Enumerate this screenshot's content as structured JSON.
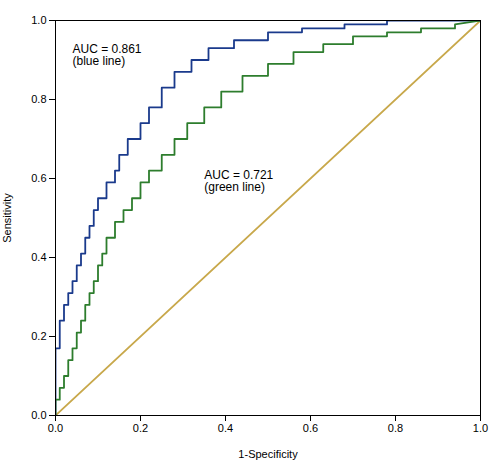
{
  "chart_data": {
    "type": "line",
    "xlabel": "1-Specificity",
    "ylabel": "Sensitivity",
    "xlim": [
      0.0,
      1.0
    ],
    "ylim": [
      0.0,
      1.0
    ],
    "xticks": [
      {
        "value": 0.0,
        "label": "0.0"
      },
      0.2,
      0.4,
      0.6,
      0.8,
      {
        "value": 1.0,
        "label": "1.0"
      }
    ],
    "yticks": [
      {
        "value": 0.0,
        "label": "0.0"
      },
      0.2,
      0.4,
      0.6,
      0.8,
      {
        "value": 1.0,
        "label": "1.0"
      }
    ],
    "grid": false,
    "series": [
      {
        "color": "#c8a84b",
        "x": [
          0,
          1
        ],
        "values": [
          0,
          1
        ]
      },
      {
        "color": "#1a3a8c",
        "x": [
          0.0,
          0.0,
          0.0,
          0.0,
          0.0,
          0.0,
          0.01,
          0.01,
          0.01,
          0.02,
          0.02,
          0.03,
          0.03,
          0.04,
          0.04,
          0.05,
          0.05,
          0.06,
          0.06,
          0.07,
          0.07,
          0.08,
          0.08,
          0.09,
          0.09,
          0.1,
          0.1,
          0.12,
          0.12,
          0.14,
          0.14,
          0.15,
          0.15,
          0.17,
          0.17,
          0.2,
          0.2,
          0.22,
          0.22,
          0.25,
          0.25,
          0.28,
          0.28,
          0.32,
          0.32,
          0.36,
          0.36,
          0.42,
          0.42,
          0.5,
          0.5,
          0.58,
          0.58,
          0.68,
          0.68,
          0.78,
          0.78,
          0.88,
          0.88,
          0.96,
          0.96,
          1.0
        ],
        "values": [
          0.0,
          0.03,
          0.06,
          0.1,
          0.14,
          0.17,
          0.17,
          0.21,
          0.24,
          0.24,
          0.28,
          0.28,
          0.31,
          0.31,
          0.34,
          0.34,
          0.38,
          0.38,
          0.41,
          0.41,
          0.45,
          0.45,
          0.48,
          0.48,
          0.52,
          0.52,
          0.55,
          0.55,
          0.59,
          0.59,
          0.62,
          0.62,
          0.66,
          0.66,
          0.7,
          0.7,
          0.74,
          0.74,
          0.78,
          0.78,
          0.83,
          0.83,
          0.87,
          0.87,
          0.9,
          0.9,
          0.93,
          0.93,
          0.95,
          0.95,
          0.97,
          0.97,
          0.98,
          0.98,
          0.99,
          0.99,
          1.0,
          1.0,
          1.0,
          1.0,
          1.0,
          1.0
        ]
      },
      {
        "color": "#2d7d2d",
        "x": [
          0.0,
          0.0,
          0.01,
          0.01,
          0.02,
          0.02,
          0.03,
          0.03,
          0.04,
          0.04,
          0.05,
          0.05,
          0.06,
          0.06,
          0.07,
          0.07,
          0.08,
          0.08,
          0.09,
          0.09,
          0.1,
          0.1,
          0.11,
          0.11,
          0.12,
          0.12,
          0.14,
          0.14,
          0.16,
          0.16,
          0.18,
          0.18,
          0.2,
          0.2,
          0.22,
          0.22,
          0.25,
          0.25,
          0.28,
          0.28,
          0.31,
          0.31,
          0.35,
          0.35,
          0.39,
          0.39,
          0.44,
          0.44,
          0.5,
          0.5,
          0.56,
          0.56,
          0.63,
          0.63,
          0.7,
          0.7,
          0.78,
          0.78,
          0.86,
          0.86,
          0.94,
          0.94,
          1.0
        ],
        "values": [
          0.0,
          0.04,
          0.04,
          0.07,
          0.07,
          0.1,
          0.1,
          0.14,
          0.14,
          0.17,
          0.17,
          0.21,
          0.21,
          0.24,
          0.24,
          0.28,
          0.28,
          0.31,
          0.31,
          0.34,
          0.34,
          0.38,
          0.38,
          0.41,
          0.41,
          0.45,
          0.45,
          0.49,
          0.49,
          0.52,
          0.52,
          0.55,
          0.55,
          0.59,
          0.59,
          0.62,
          0.62,
          0.66,
          0.66,
          0.7,
          0.7,
          0.74,
          0.74,
          0.78,
          0.78,
          0.82,
          0.82,
          0.86,
          0.86,
          0.89,
          0.89,
          0.92,
          0.92,
          0.94,
          0.94,
          0.96,
          0.96,
          0.97,
          0.97,
          0.98,
          0.98,
          0.99,
          1.0
        ]
      }
    ],
    "annotations": [
      {
        "text": "AUC = 0.861\n(blue line)",
        "x": 0.04,
        "y": 0.94
      },
      {
        "text": "AUC = 0.721\n(green line)",
        "x": 0.35,
        "y": 0.62
      }
    ]
  }
}
